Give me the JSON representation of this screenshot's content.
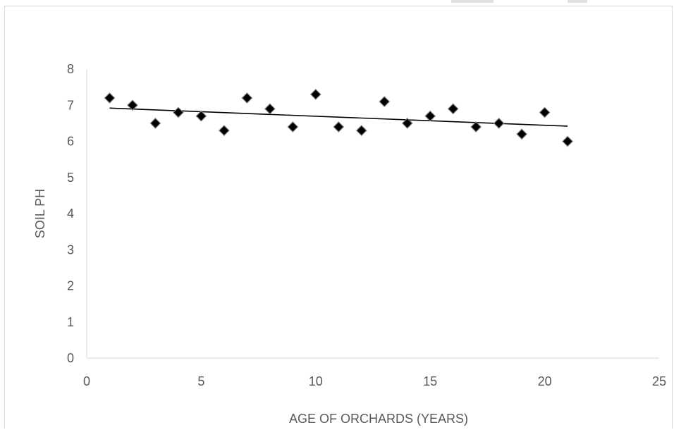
{
  "chart_data": {
    "type": "scatter",
    "title": "",
    "xlabel": "AGE OF ORCHARDS (YEARS)",
    "ylabel": "SOIL PH",
    "xlim": [
      0,
      25
    ],
    "ylim": [
      0,
      8
    ],
    "xticks": [
      0,
      5,
      10,
      15,
      20,
      25
    ],
    "yticks": [
      0,
      1,
      2,
      3,
      4,
      5,
      6,
      7,
      8
    ],
    "grid": false,
    "legend": "none",
    "marker": "diamond",
    "marker_color": "#000000",
    "series": [
      {
        "x": [
          1,
          2,
          3,
          4,
          5,
          6,
          7,
          8,
          9,
          10,
          11,
          12,
          13,
          14,
          15,
          16,
          17,
          18,
          19,
          20,
          21
        ],
        "y": [
          7.2,
          7.0,
          6.5,
          6.8,
          6.7,
          6.3,
          7.2,
          6.9,
          6.4,
          7.3,
          6.4,
          6.3,
          7.1,
          6.5,
          6.7,
          6.9,
          6.4,
          6.5,
          6.2,
          6.8,
          6.0
        ]
      }
    ],
    "trendline": {
      "type": "linear",
      "x": [
        1,
        21
      ],
      "y": [
        6.92,
        6.42
      ],
      "color": "#000000"
    }
  }
}
